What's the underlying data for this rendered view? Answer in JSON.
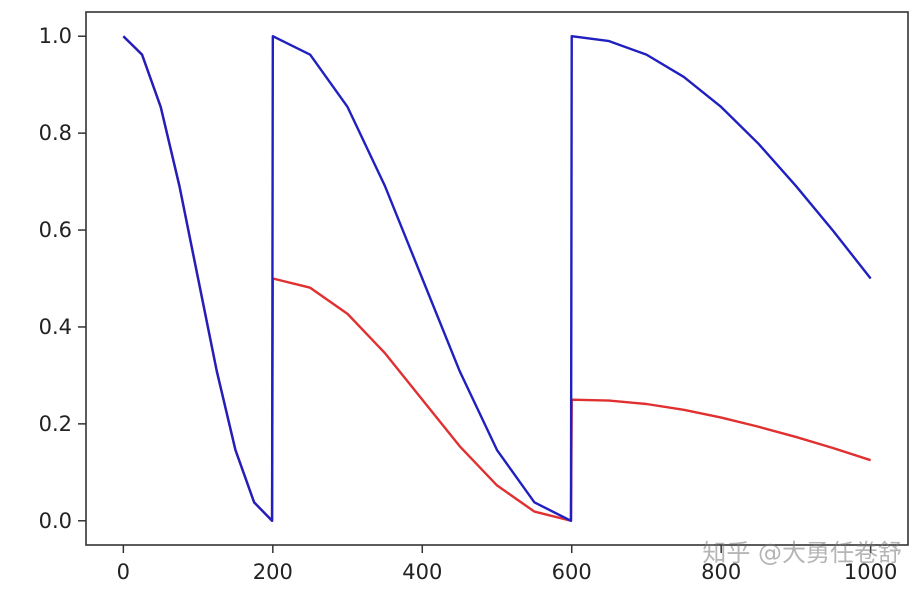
{
  "watermark": "知乎 @大勇任卷舒",
  "chart_data": {
    "type": "line",
    "title": "",
    "xlabel": "",
    "ylabel": "",
    "xlim": [
      -50,
      1050
    ],
    "ylim": [
      -0.05,
      1.05
    ],
    "grid": false,
    "legend": "none",
    "xticks": [
      0,
      200,
      400,
      600,
      800,
      1000
    ],
    "yticks": [
      0.0,
      0.2,
      0.4,
      0.6,
      0.8,
      1.0
    ],
    "xtick_labels": [
      "0",
      "200",
      "400",
      "600",
      "800",
      "1000"
    ],
    "ytick_labels": [
      "0.0",
      "0.2",
      "0.4",
      "0.6",
      "0.8",
      "1.0"
    ],
    "series": [
      {
        "color": "#e03030",
        "x": [
          0,
          25,
          50,
          75,
          100,
          125,
          150,
          175,
          199,
          200,
          250,
          300,
          350,
          400,
          450,
          500,
          550,
          599,
          600,
          650,
          700,
          750,
          800,
          850,
          900,
          950,
          1000
        ],
        "y": [
          1.0,
          0.962,
          0.854,
          0.691,
          0.5,
          0.309,
          0.146,
          0.038,
          0.0,
          0.5,
          0.481,
          0.427,
          0.346,
          0.25,
          0.154,
          0.073,
          0.019,
          0.0,
          0.25,
          0.248,
          0.241,
          0.229,
          0.213,
          0.194,
          0.173,
          0.15,
          0.125
        ]
      },
      {
        "color": "#2020c0",
        "x": [
          0,
          25,
          50,
          75,
          100,
          125,
          150,
          175,
          199,
          200,
          250,
          300,
          350,
          400,
          450,
          500,
          550,
          599,
          600,
          650,
          700,
          750,
          800,
          850,
          900,
          950,
          1000
        ],
        "y": [
          1.0,
          0.962,
          0.854,
          0.691,
          0.5,
          0.309,
          0.146,
          0.038,
          0.0,
          1.0,
          0.962,
          0.854,
          0.691,
          0.5,
          0.309,
          0.146,
          0.038,
          0.0,
          1.0,
          0.99,
          0.962,
          0.916,
          0.854,
          0.778,
          0.691,
          0.598,
          0.5
        ]
      }
    ]
  }
}
